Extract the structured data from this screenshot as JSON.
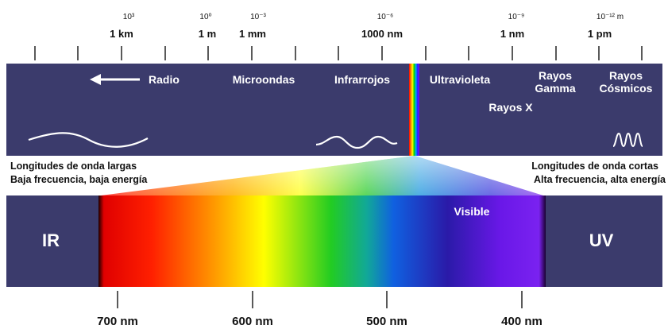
{
  "top_scale": {
    "ticks": [
      {
        "exponent": "10³",
        "label": "1 km"
      },
      {
        "exponent": "10⁰",
        "label": "1 m"
      },
      {
        "exponent": "10⁻³",
        "label": "1 mm"
      },
      {
        "exponent": "10⁻⁶",
        "label": "1000 nm"
      },
      {
        "exponent": "10⁻⁹",
        "label": "1 nm"
      },
      {
        "exponent": "10⁻¹² m",
        "label": "1 pm"
      }
    ]
  },
  "bands": {
    "radio": "Radio",
    "microwaves": "Microondas",
    "infrared": "Infrarrojos",
    "ultraviolet": "Ultravioleta",
    "gamma_line1": "Rayos",
    "gamma_line2": "Gamma",
    "xray": "Rayos X",
    "cosmic_line1": "Rayos",
    "cosmic_line2": "Cósmicos"
  },
  "left_note": {
    "line1": "Longitudes de onda largas",
    "line2": "Baja frecuencia, baja energía"
  },
  "right_note": {
    "line1": "Longitudes de onda cortas",
    "line2": "Alta frecuencia, alta energía"
  },
  "visible_band": {
    "label": "Visible",
    "ir_label": "IR",
    "uv_label": "UV"
  },
  "bottom_scale": {
    "labels": [
      "700 nm",
      "600 nm",
      "500 nm",
      "400 nm"
    ]
  },
  "colors": {
    "panel": "#3b3b6c",
    "panel_text": "#ffffff",
    "label_text": "#111111"
  },
  "icons": {
    "radio_arrow": "arrow-left-icon",
    "long_wave": "long-wave-icon",
    "medium_wave": "medium-wave-icon",
    "short_wave": "short-wave-icon"
  }
}
